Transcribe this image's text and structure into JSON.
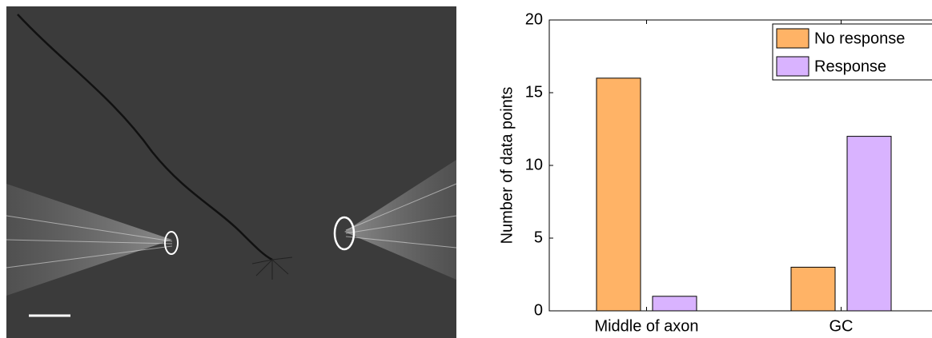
{
  "chart_data": {
    "type": "bar",
    "categories": [
      "Middle of axon",
      "GC"
    ],
    "series": [
      {
        "name": "No response",
        "color": "#ffb366",
        "values": [
          16,
          3
        ]
      },
      {
        "name": "Response",
        "color": "#d9b3ff",
        "values": [
          1,
          12
        ]
      }
    ],
    "y_label": "Number of data points",
    "ylim": [
      0,
      20
    ],
    "yticks": [
      0,
      5,
      10,
      15,
      20
    ],
    "grid": false,
    "legend": "upper right"
  }
}
